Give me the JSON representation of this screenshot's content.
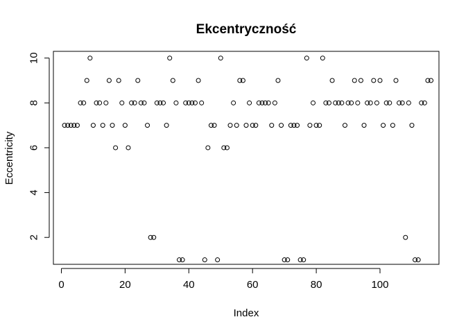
{
  "chart_data": {
    "type": "scatter",
    "title": "Ekcentryczność",
    "xlabel": "Index",
    "ylabel": "Eccentricity",
    "xlim": [
      -2.5,
      118.5
    ],
    "ylim": [
      0.8,
      10.3
    ],
    "xticks": [
      0,
      20,
      40,
      60,
      80,
      100
    ],
    "yticks": [
      2,
      4,
      6,
      8,
      10
    ],
    "grid": false,
    "marker": "open-circle",
    "point_color": "#000000",
    "y": [
      7,
      7,
      7,
      7,
      7,
      8,
      8,
      9,
      10,
      7,
      8,
      8,
      7,
      8,
      9,
      7,
      6,
      9,
      8,
      7,
      6,
      8,
      8,
      9,
      8,
      8,
      7,
      2,
      2,
      8,
      8,
      8,
      7,
      10,
      9,
      8,
      1,
      1,
      8,
      8,
      8,
      8,
      9,
      8,
      1,
      6,
      7,
      7,
      1,
      10,
      6,
      6,
      7,
      8,
      7,
      9,
      9,
      7,
      8,
      7,
      7,
      8,
      8,
      8,
      8,
      7,
      8,
      9,
      7,
      1,
      1,
      7,
      7,
      7,
      1,
      1,
      10,
      7,
      8,
      7,
      7,
      10,
      8,
      8,
      9,
      8,
      8,
      8,
      7,
      8,
      8,
      9,
      8,
      9,
      7,
      8,
      8,
      9,
      8,
      9,
      7,
      8,
      8,
      7,
      9,
      8,
      8,
      2,
      8,
      7,
      1,
      1,
      8,
      8,
      9,
      9
    ]
  }
}
